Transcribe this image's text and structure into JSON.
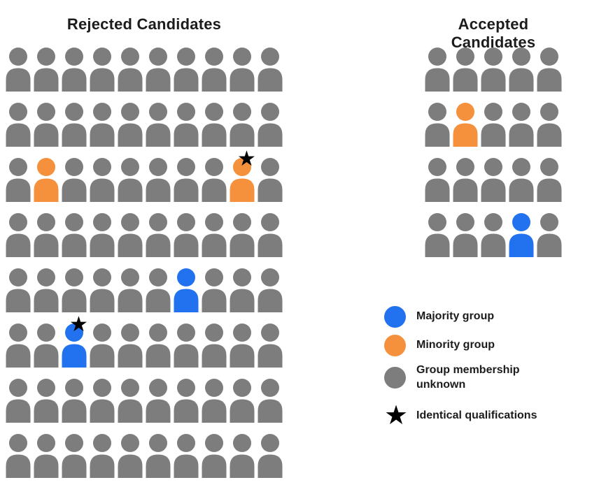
{
  "titles": {
    "rejected": "Rejected Candidates",
    "accepted": "Accepted Candidates"
  },
  "colors": {
    "majority": "#2272F0",
    "minority": "#F5913D",
    "unknown": "#7D7D7D",
    "star": "#000000"
  },
  "star_glyph": "★",
  "grids": {
    "rejected": {
      "columns": 10,
      "rows": [
        [
          "u",
          "u",
          "u",
          "u",
          "u",
          "u",
          "u",
          "u",
          "u",
          "u"
        ],
        [
          "u",
          "u",
          "u",
          "u",
          "u",
          "u",
          "u",
          "u",
          "u",
          "u"
        ],
        [
          "u",
          "m",
          "u",
          "u",
          "u",
          "u",
          "u",
          "u",
          "m*",
          "u"
        ],
        [
          "u",
          "u",
          "u",
          "u",
          "u",
          "u",
          "u",
          "u",
          "u",
          "u"
        ],
        [
          "u",
          "u",
          "u",
          "u",
          "u",
          "u",
          "M",
          "u",
          "u",
          "u"
        ],
        [
          "u",
          "u",
          "M*",
          "u",
          "u",
          "u",
          "u",
          "u",
          "u",
          "u"
        ],
        [
          "u",
          "u",
          "u",
          "u",
          "u",
          "u",
          "u",
          "u",
          "u",
          "u"
        ],
        [
          "u",
          "u",
          "u",
          "u",
          "u",
          "u",
          "u",
          "u",
          "u",
          "u"
        ]
      ]
    },
    "accepted": {
      "columns": 5,
      "rows": [
        [
          "u",
          "u",
          "u",
          "u",
          "u"
        ],
        [
          "u",
          "m",
          "u",
          "u",
          "u"
        ],
        [
          "u",
          "u",
          "u",
          "u",
          "u"
        ],
        [
          "u",
          "u",
          "u",
          "M",
          "u"
        ]
      ]
    }
  },
  "legend": {
    "items": [
      {
        "key": "majority",
        "type": "circle",
        "color_key": "majority",
        "label": "Majority group"
      },
      {
        "key": "minority",
        "type": "circle",
        "color_key": "minority",
        "label": "Minority group"
      },
      {
        "key": "unknown",
        "type": "circle",
        "color_key": "unknown",
        "label": "Group membership unknown"
      },
      {
        "key": "identical-qualifications",
        "type": "star",
        "label": "Identical qualifications"
      }
    ]
  }
}
